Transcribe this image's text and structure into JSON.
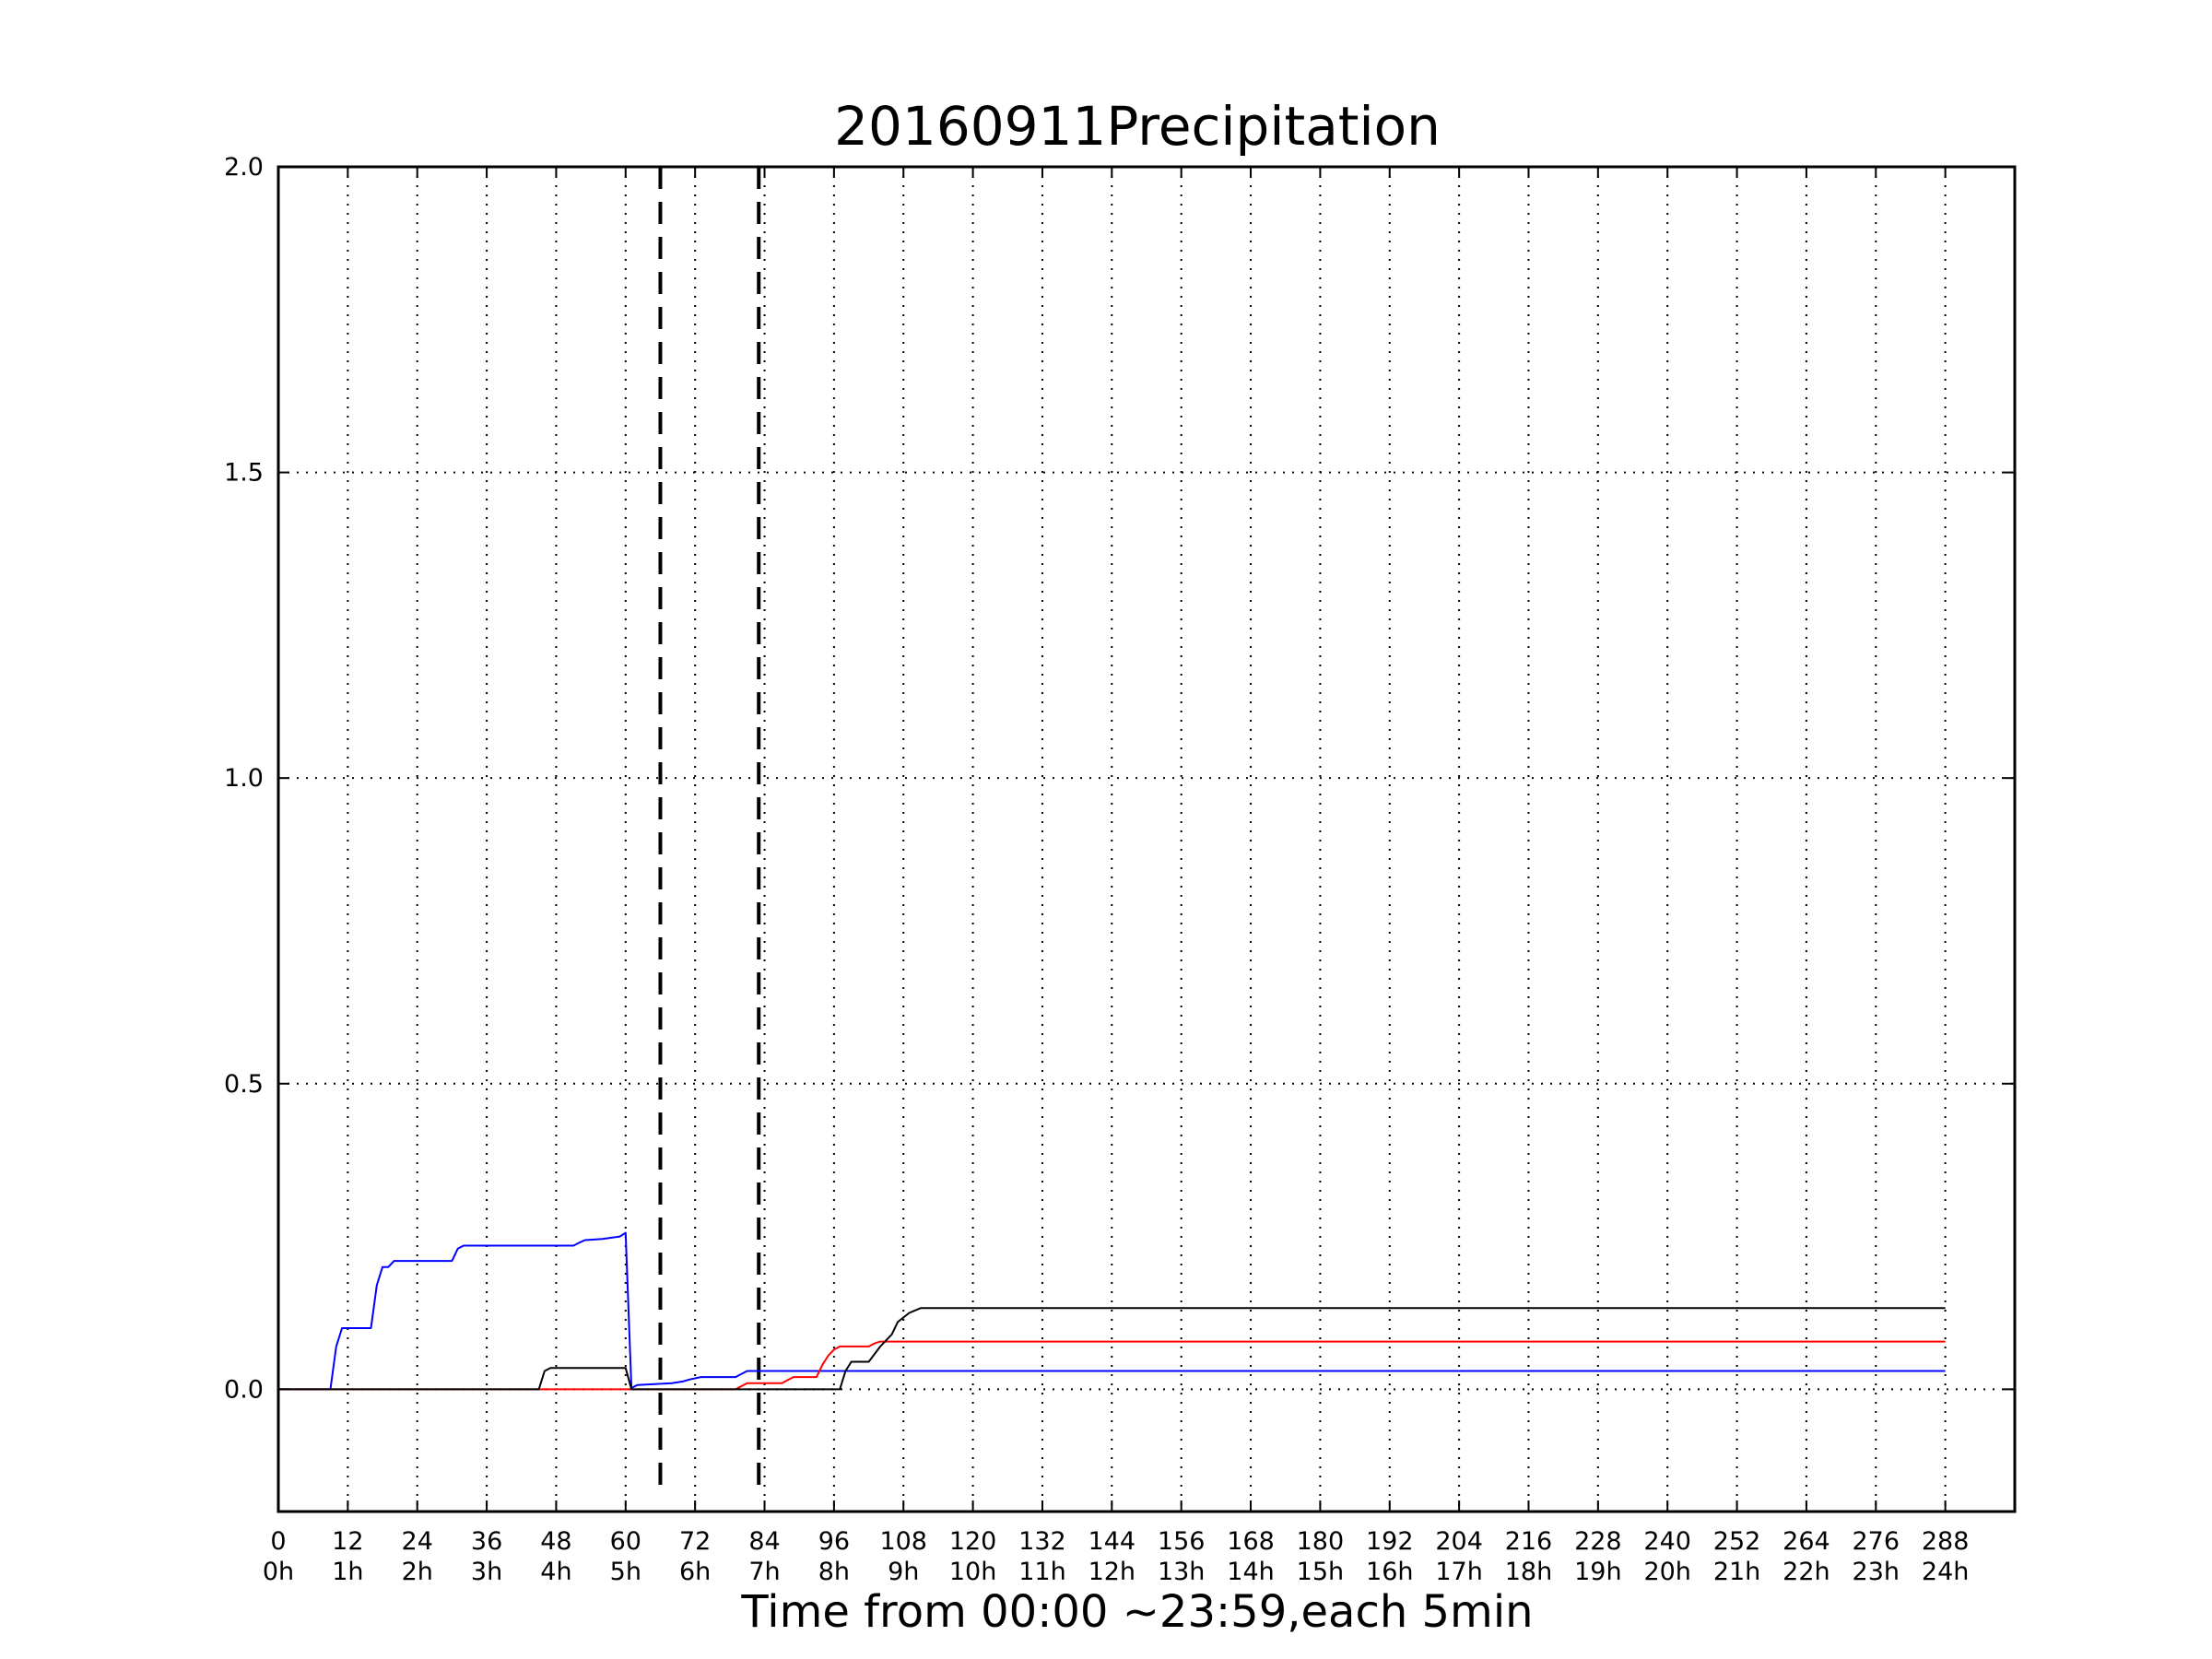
{
  "chart_data": {
    "type": "line",
    "title": "20160911Precipitation",
    "xlabel": "Time from 00:00 ~23:59,each 5min",
    "ylabel": "",
    "xlim": [
      0,
      300
    ],
    "ylim": [
      -0.2,
      2.0
    ],
    "grid": true,
    "grid_style": "dotted",
    "x_ticks": [
      0,
      12,
      24,
      36,
      48,
      60,
      72,
      84,
      96,
      108,
      120,
      132,
      144,
      156,
      168,
      180,
      192,
      204,
      216,
      228,
      240,
      252,
      264,
      276,
      288
    ],
    "x_tick_labels": [
      "0",
      "12",
      "24",
      "36",
      "48",
      "60",
      "72",
      "84",
      "96",
      "108",
      "120",
      "132",
      "144",
      "156",
      "168",
      "180",
      "192",
      "204",
      "216",
      "228",
      "240",
      "252",
      "264",
      "276",
      "288"
    ],
    "x_tick_sublabels": [
      "0h",
      "1h",
      "2h",
      "3h",
      "4h",
      "5h",
      "6h",
      "7h",
      "8h",
      "9h",
      "10h",
      "11h",
      "12h",
      "13h",
      "14h",
      "15h",
      "16h",
      "17h",
      "18h",
      "19h",
      "20h",
      "21h",
      "22h",
      "23h",
      "24h"
    ],
    "y_ticks": [
      0.0,
      0.5,
      1.0,
      1.5,
      2.0
    ],
    "y_tick_labels": [
      "0.0",
      "0.5",
      "1.0",
      "1.5",
      "2.0"
    ],
    "vertical_markers": [
      {
        "x": 66,
        "style": "dashed",
        "color": "#000000"
      },
      {
        "x": 83,
        "style": "dashed",
        "color": "#000000"
      }
    ],
    "series": [
      {
        "color": "#0000ff",
        "points": [
          [
            0,
            0
          ],
          [
            9,
            0
          ],
          [
            10,
            0.07
          ],
          [
            11,
            0.1
          ],
          [
            12,
            0.1
          ],
          [
            16,
            0.1
          ],
          [
            17,
            0.17
          ],
          [
            18,
            0.2
          ],
          [
            19,
            0.2
          ],
          [
            20,
            0.21
          ],
          [
            21,
            0.21
          ],
          [
            30,
            0.21
          ],
          [
            31,
            0.23
          ],
          [
            32,
            0.235
          ],
          [
            51,
            0.235
          ],
          [
            52,
            0.24
          ],
          [
            53,
            0.244
          ],
          [
            56,
            0.246
          ],
          [
            59,
            0.25
          ],
          [
            60,
            0.256
          ],
          [
            61,
            0.002
          ],
          [
            62,
            0.007
          ],
          [
            68,
            0.01
          ],
          [
            70,
            0.013
          ],
          [
            71,
            0.016
          ],
          [
            73,
            0.02
          ],
          [
            79,
            0.02
          ],
          [
            80,
            0.025
          ],
          [
            81,
            0.03
          ],
          [
            288,
            0.03
          ]
        ]
      },
      {
        "color": "#ff0000",
        "points": [
          [
            0,
            0
          ],
          [
            79,
            0
          ],
          [
            80,
            0.005
          ],
          [
            81,
            0.01
          ],
          [
            87,
            0.01
          ],
          [
            88,
            0.015
          ],
          [
            89,
            0.02
          ],
          [
            93,
            0.02
          ],
          [
            94,
            0.04
          ],
          [
            95,
            0.055
          ],
          [
            96,
            0.065
          ],
          [
            97,
            0.07
          ],
          [
            102,
            0.07
          ],
          [
            103,
            0.075
          ],
          [
            104,
            0.078
          ],
          [
            288,
            0.078
          ]
        ]
      },
      {
        "color": "#000000",
        "points": [
          [
            0,
            0
          ],
          [
            45,
            0
          ],
          [
            46,
            0.03
          ],
          [
            47,
            0.035
          ],
          [
            60,
            0.035
          ],
          [
            61,
            0
          ],
          [
            97,
            0
          ],
          [
            98,
            0.03
          ],
          [
            99,
            0.045
          ],
          [
            102,
            0.045
          ],
          [
            104,
            0.07
          ],
          [
            106,
            0.09
          ],
          [
            107,
            0.11
          ],
          [
            109,
            0.125
          ],
          [
            111,
            0.133
          ],
          [
            288,
            0.133
          ]
        ]
      }
    ]
  }
}
